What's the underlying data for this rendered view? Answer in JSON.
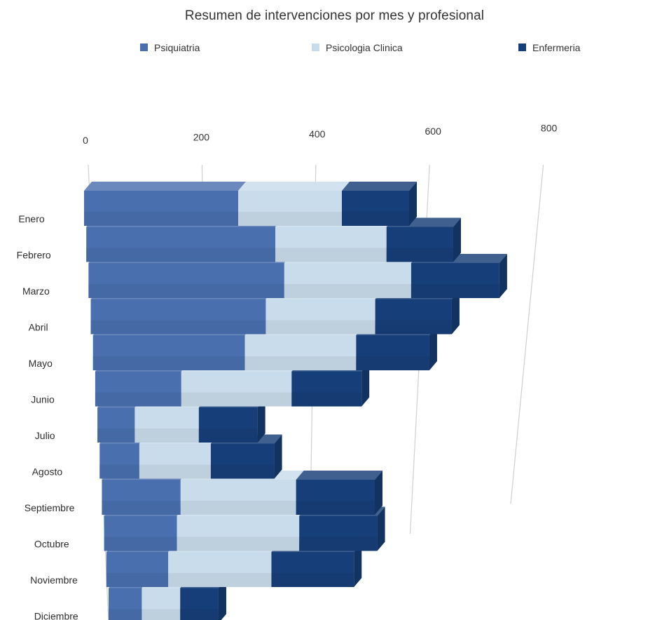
{
  "chart_data": {
    "type": "bar",
    "orientation": "horizontal",
    "stacked": true,
    "three_d": true,
    "title": "Resumen de intervenciones por mes y profesional",
    "legend_position": "top",
    "categories": [
      "Enero",
      "Febrero",
      "Marzo",
      "Abril",
      "Mayo",
      "Junio",
      "Julio",
      "Agosto",
      "Septiembre",
      "Octubre",
      "Noviembre",
      "Diciembre"
    ],
    "series": [
      {
        "name": "Psiquiatria",
        "color": "#4a6fae",
        "values": [
          275,
          340,
          355,
          320,
          280,
          160,
          70,
          75,
          150,
          140,
          120,
          65
        ]
      },
      {
        "name": "Psicologia Clinica",
        "color": "#c9dceb",
        "values": [
          185,
          200,
          230,
          200,
          205,
          205,
          120,
          135,
          220,
          235,
          200,
          75
        ]
      },
      {
        "name": "Enfermeria",
        "color": "#163e78",
        "values": [
          120,
          120,
          160,
          140,
          135,
          130,
          110,
          120,
          150,
          150,
          160,
          75
        ]
      }
    ],
    "xlim": [
      0,
      800
    ],
    "x_ticks": [
      "0",
      "200",
      "400",
      "600",
      "800"
    ],
    "grid": true
  }
}
